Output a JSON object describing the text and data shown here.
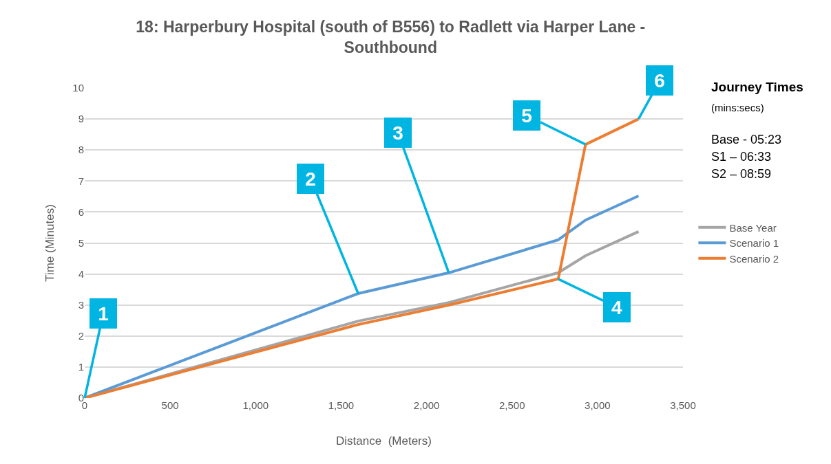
{
  "chart_data": {
    "type": "line",
    "title": "18: Harperbury Hospital (south of B556) to Radlett via Harper Lane - Southbound",
    "xlabel": "Distance  (Meters)",
    "ylabel": "Time (Minutes)",
    "x": [
      0,
      1600,
      2130,
      2770,
      2930,
      3240
    ],
    "series": [
      {
        "name": "Base Year",
        "color": "#a5a5a5",
        "values": [
          0,
          2.48,
          3.08,
          4.04,
          4.59,
          5.37
        ]
      },
      {
        "name": "Scenario 1",
        "color": "#5b9bd5",
        "values": [
          0,
          3.37,
          4.04,
          5.1,
          5.74,
          6.52
        ]
      },
      {
        "name": "Scenario 2",
        "color": "#ed7d31",
        "values": [
          0,
          2.37,
          3.0,
          3.84,
          8.18,
          9.0
        ]
      }
    ],
    "xlim": [
      0,
      3500
    ],
    "xticks": [
      0,
      500,
      {
        "value": 1000,
        "label": "1,000"
      },
      {
        "value": 1500,
        "label": "1,500"
      },
      {
        "value": 2000,
        "label": "2,000"
      },
      {
        "value": 2500,
        "label": "2,500"
      },
      {
        "value": 3000,
        "label": "3,000"
      },
      {
        "value": 3500,
        "label": "3,500"
      }
    ],
    "ylim": [
      0,
      10
    ],
    "yticks": [
      0,
      1,
      2,
      3,
      4,
      5,
      6,
      7,
      8,
      9,
      10
    ],
    "grid": "y",
    "legend": "right",
    "marker": "none",
    "line_style": "solid",
    "annotations": [
      {
        "text": "1",
        "x": 0,
        "y": 0
      },
      {
        "text": "2",
        "x": 1600,
        "y": 3.37
      },
      {
        "text": "3",
        "x": 2130,
        "y": 4.04
      },
      {
        "text": "4",
        "x": 2770,
        "y": 3.84
      },
      {
        "text": "5",
        "x": 2930,
        "y": 8.18
      },
      {
        "text": "6",
        "x": 3240,
        "y": 9.0
      },
      "Journey Times",
      "(mins:secs)",
      "Base - 05:23",
      "S1 – 06:33",
      "S2 – 08:59"
    ]
  }
}
